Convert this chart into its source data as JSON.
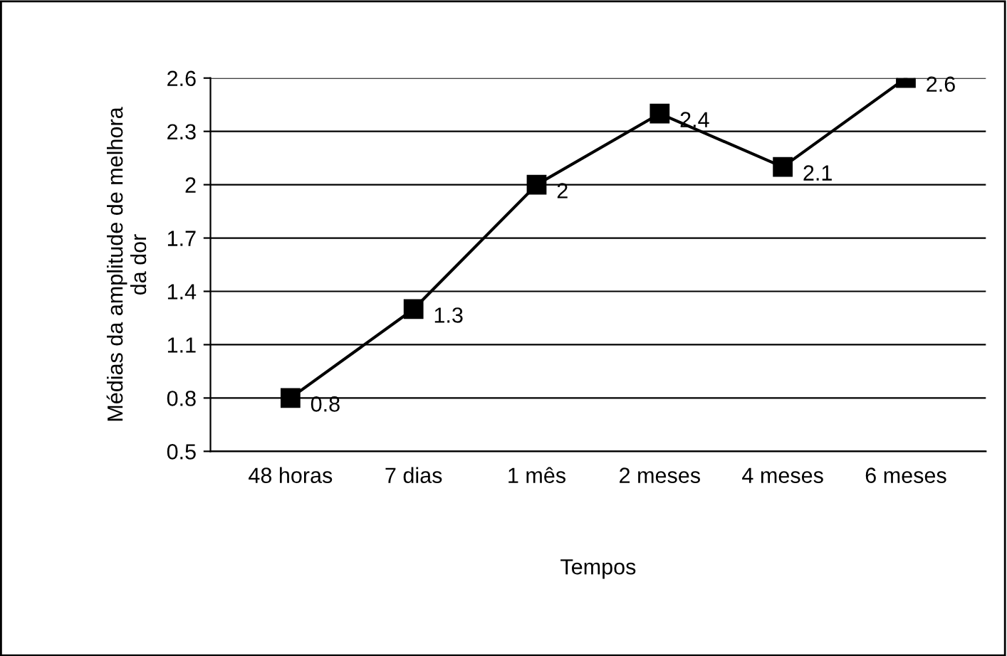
{
  "chart_data": {
    "type": "line",
    "xlabel": "Tempos",
    "ylabel": "Médias da amplitude de melhora\nda dor",
    "categories": [
      "48 horas",
      "7 dias",
      "1 mês",
      "2 meses",
      "4 meses",
      "6 meses"
    ],
    "series": [
      {
        "color": "#000000",
        "values": [
          0.8,
          1.3,
          2,
          2.4,
          2.1,
          2.6
        ]
      }
    ],
    "ylim": [
      0.5,
      2.6
    ],
    "yticks": [
      0.5,
      0.8,
      1.1,
      1.4,
      1.7,
      2,
      2.3,
      2.6
    ],
    "grid": "y",
    "marker": "square",
    "line_style": "solid",
    "data_labels": true
  }
}
